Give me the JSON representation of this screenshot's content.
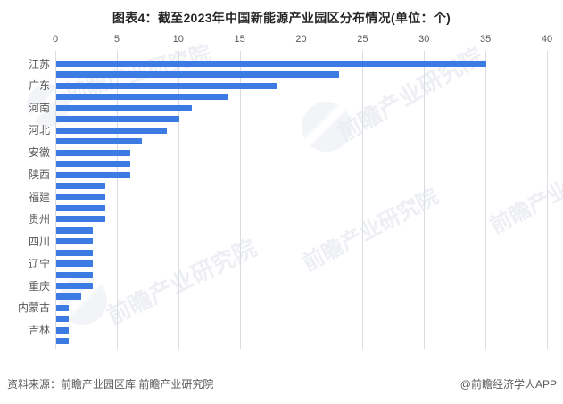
{
  "title": "图表4：截至2023年中国新能源产业园区分布情况(单位：个)",
  "footer": {
    "source": "资料来源：前瞻产业园区库 前瞻产业研究院",
    "credit": "@前瞻经济学人APP"
  },
  "watermark": {
    "text": "前瞻产业研究院"
  },
  "colors": {
    "bar": "#3c7be4",
    "grid": "#d9dce1",
    "axis_text": "#595959",
    "title_text": "#262626",
    "footer_text": "#595959",
    "watermark": "#dfe3ec"
  },
  "chart_data": {
    "type": "bar",
    "orientation": "horizontal",
    "title": "图表4：截至2023年中国新能源产业园区分布情况(单位：个)",
    "unit": "个",
    "xlim": [
      0,
      40
    ],
    "xticks": [
      0,
      5,
      10,
      15,
      20,
      25,
      30,
      35,
      40
    ],
    "tick_position": "top",
    "grid": true,
    "legend": false,
    "categories": [
      "江苏",
      "",
      "广东",
      "",
      "河南",
      "",
      "河北",
      "",
      "安徽",
      "",
      "陕西",
      "",
      "福建",
      "",
      "贵州",
      "",
      "四川",
      "",
      "辽宁",
      "",
      "重庆",
      "",
      "内蒙古",
      "",
      "吉林",
      ""
    ],
    "values": [
      35,
      23,
      18,
      14,
      11,
      10,
      9,
      7,
      6,
      6,
      6,
      4,
      4,
      4,
      4,
      3,
      3,
      3,
      3,
      3,
      3,
      2,
      1,
      1,
      1,
      1
    ]
  }
}
